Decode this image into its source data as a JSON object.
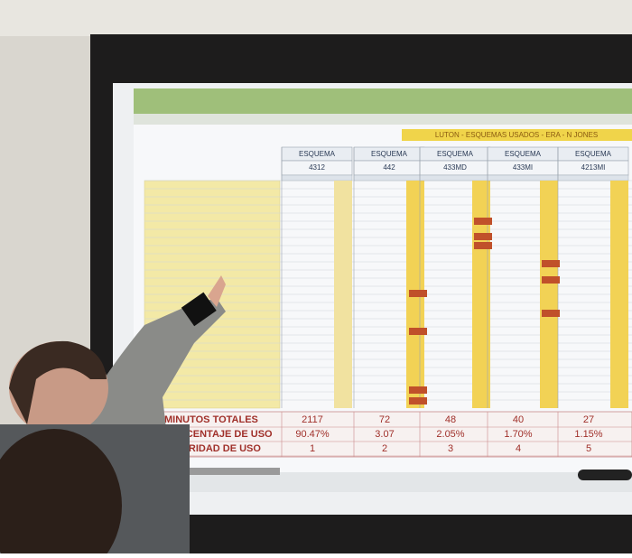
{
  "sheet": {
    "title": "LUTON - ESQUEMAS USADOS - ERA - N JONES",
    "schemes": [
      {
        "label": "ESQUEMA",
        "code": "4312"
      },
      {
        "label": "ESQUEMA",
        "code": "442"
      },
      {
        "label": "ESQUEMA",
        "code": "433MD"
      },
      {
        "label": "ESQUEMA",
        "code": "433MI"
      },
      {
        "label": "ESQUEMA",
        "code": "4213MI"
      }
    ],
    "summary": [
      {
        "label": "MINUTOS TOTALES",
        "values": [
          "2117",
          "72",
          "48",
          "40",
          "27"
        ]
      },
      {
        "label": "PORCENTAJE DE USO",
        "values": [
          "90.47%",
          "3.07",
          "2.05%",
          "1.70%",
          "1.15%"
        ]
      },
      {
        "label": "PRIORIDAD DE USO",
        "values": [
          "1",
          "2",
          "3",
          "4",
          "5"
        ]
      }
    ]
  }
}
